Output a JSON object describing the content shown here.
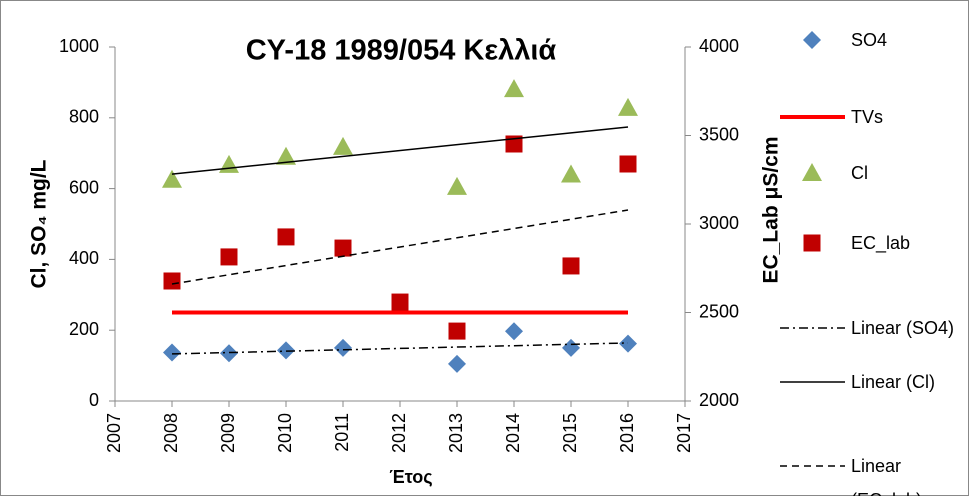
{
  "chart_data": {
    "type": "scatter",
    "title": "CY-18 1989/054 Κελλιά",
    "x_label": "Έτος",
    "y_label": "Cl, SO₄ mg/L",
    "y2_label": "EC_Lab μS/cm",
    "xlim": [
      2007,
      2017
    ],
    "xticks": [
      2007,
      2008,
      2009,
      2010,
      2011,
      2012,
      2013,
      2014,
      2015,
      2016,
      2017
    ],
    "ylim": [
      0,
      1000
    ],
    "yticks": [
      0,
      200,
      400,
      600,
      800,
      1000
    ],
    "y2lim": [
      2000,
      4000
    ],
    "y2ticks": [
      2000,
      2500,
      3000,
      3500,
      4000
    ],
    "grid": false,
    "legend": "right",
    "series": [
      {
        "name": "SO4",
        "color": "#4f81bd",
        "marker": "diamond",
        "axis": "y",
        "x": [
          2008,
          2009,
          2010,
          2011,
          2013,
          2014,
          2015,
          2016
        ],
        "values": [
          137,
          135,
          143,
          150,
          105,
          197,
          150,
          162
        ]
      },
      {
        "name": "TVs",
        "color": "#ff0000",
        "marker": "line",
        "axis": "y",
        "x": [
          2008,
          2016
        ],
        "values": [
          250,
          250
        ]
      },
      {
        "name": "Cl",
        "color": "#9bbb59",
        "marker": "triangle",
        "axis": "y",
        "x": [
          2008,
          2009,
          2010,
          2011,
          2013,
          2014,
          2015,
          2016
        ],
        "values": [
          625,
          667,
          690,
          718,
          605,
          881,
          640,
          828
        ]
      },
      {
        "name": "EC_lab",
        "color": "#c00000",
        "marker": "square",
        "axis": "y2",
        "x": [
          2008,
          2009,
          2010,
          2011,
          2012,
          2013,
          2014,
          2015,
          2016
        ],
        "values": [
          2678,
          2814,
          2927,
          2864,
          2559,
          2395,
          3452,
          2763,
          3339
        ]
      },
      {
        "name": "Linear (SO4)",
        "color": "#000000",
        "marker": "dashdot",
        "axis": "y",
        "x": [
          2008,
          2016
        ],
        "values": [
          133,
          164
        ]
      },
      {
        "name": "Linear (Cl)",
        "color": "#000000",
        "marker": "solid",
        "axis": "y",
        "x": [
          2008,
          2016
        ],
        "values": [
          641,
          774
        ]
      },
      {
        "name": "Linear (EC_lab)",
        "color": "#000000",
        "marker": "dash",
        "axis": "y2",
        "x": [
          2008,
          2016
        ],
        "values": [
          2661,
          3079
        ]
      }
    ]
  }
}
